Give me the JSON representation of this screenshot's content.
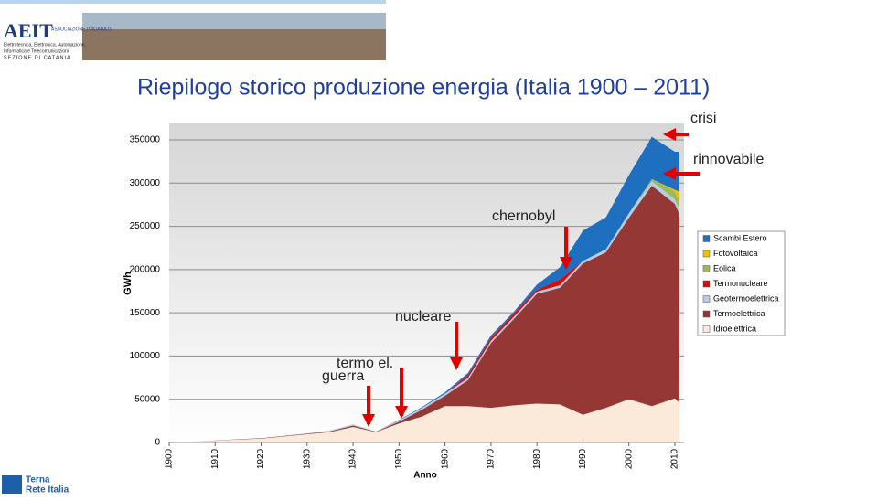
{
  "header": {
    "logo": "AEIT",
    "logo_sub": "ASSOCIAZIONE ITALIANA DI",
    "logo_line1": "Elettrotecnica, Elettronica, Automazione,",
    "logo_line2": "Informatica e Telecomunicazioni",
    "logo_section": "SEZIONE DI CATANIA"
  },
  "footer": {
    "brand_line1": "Terna",
    "brand_line2": "Rete Italia"
  },
  "chart_data": {
    "type": "stacked-area",
    "title": "Riepilogo storico produzione energia (Italia 1900 – 2011)",
    "x_label": "Anno",
    "y_label": "GWh",
    "x": [
      1900,
      1905,
      1910,
      1915,
      1920,
      1925,
      1930,
      1935,
      1940,
      1945,
      1950,
      1955,
      1960,
      1965,
      1970,
      1975,
      1980,
      1985,
      1990,
      1995,
      2000,
      2005,
      2010,
      2011
    ],
    "series": [
      {
        "name": "Idroelettrica",
        "color": "#fbe9d9",
        "values": [
          100,
          500,
          2000,
          3500,
          4500,
          7000,
          9500,
          12000,
          18000,
          12000,
          22000,
          30000,
          42000,
          42000,
          40000,
          43000,
          45000,
          44000,
          32000,
          40000,
          50000,
          42000,
          51000,
          46000
        ]
      },
      {
        "name": "Termoelettrica",
        "color": "#953735",
        "values": [
          0,
          100,
          200,
          300,
          500,
          600,
          700,
          1000,
          1500,
          500,
          2000,
          8000,
          12000,
          30000,
          75000,
          100000,
          127000,
          135000,
          175000,
          180000,
          210000,
          255000,
          225000,
          218000
        ]
      },
      {
        "name": "Geotermoelettrica",
        "color": "#b7cde6",
        "values": [
          0,
          0,
          0,
          0,
          100,
          300,
          500,
          1000,
          1500,
          300,
          1500,
          2000,
          2500,
          2500,
          2700,
          2500,
          2500,
          2700,
          3000,
          3400,
          4700,
          5300,
          5300,
          5600
        ]
      },
      {
        "name": "Termonucleare",
        "color": "#d01010",
        "values": [
          0,
          0,
          0,
          0,
          0,
          0,
          0,
          0,
          0,
          0,
          0,
          0,
          0,
          3500,
          3200,
          3800,
          2200,
          7000,
          0,
          0,
          0,
          0,
          0,
          0
        ]
      },
      {
        "name": "Eolica",
        "color": "#9bbb59",
        "values": [
          0,
          0,
          0,
          0,
          0,
          0,
          0,
          0,
          0,
          0,
          0,
          0,
          0,
          0,
          0,
          0,
          0,
          0,
          0,
          0,
          500,
          2300,
          9100,
          9800
        ]
      },
      {
        "name": "Fotovoltaica",
        "color": "#f2c000",
        "values": [
          0,
          0,
          0,
          0,
          0,
          0,
          0,
          0,
          0,
          0,
          0,
          0,
          0,
          0,
          0,
          0,
          0,
          0,
          0,
          0,
          0,
          30,
          1900,
          10800
        ]
      },
      {
        "name": "Scambi Estero",
        "color": "#1f6fc0",
        "values": [
          0,
          0,
          0,
          0,
          0,
          0,
          0,
          0,
          0,
          0,
          500,
          1000,
          1500,
          2500,
          3000,
          2000,
          6000,
          14000,
          35000,
          37000,
          44000,
          49000,
          44000,
          46000
        ]
      }
    ],
    "xlim": [
      1900,
      2011
    ],
    "xticks": [
      1900,
      1910,
      1920,
      1930,
      1940,
      1950,
      1960,
      1970,
      1980,
      1990,
      2000,
      2010
    ],
    "ylim": [
      0,
      350000
    ],
    "yticks": [
      0,
      50000,
      100000,
      150000,
      200000,
      250000,
      300000,
      350000
    ],
    "grid": true,
    "annotations": [
      "crisi",
      "rinnovabile",
      "chernobyl",
      "nucleare",
      "termo el.",
      "guerra"
    ]
  }
}
